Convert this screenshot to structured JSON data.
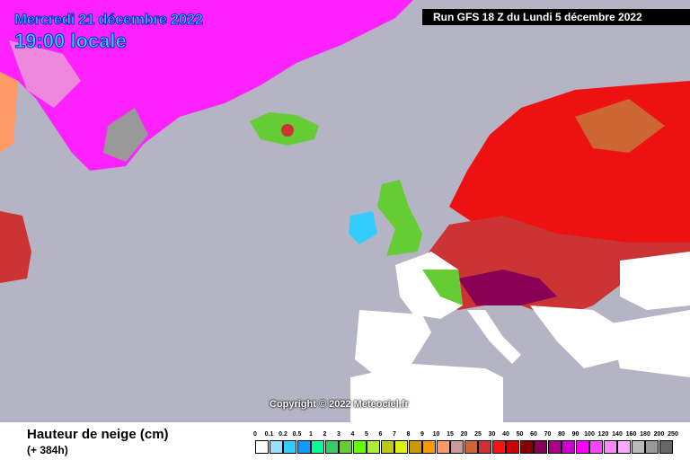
{
  "header": {
    "date": "Mercredi 21 décembre 2022",
    "time": "19:00 locale",
    "run": "Run GFS 18 Z du Lundi 5 décembre 2022"
  },
  "copyright": "Copyright © 2022 Meteociel.fr",
  "footer": {
    "title": "Hauteur de neige (cm)",
    "lead_time": "(+ 384h)"
  },
  "legend": {
    "labels": [
      "0",
      "0.1",
      "0.2",
      "0.5",
      "1",
      "2",
      "3",
      "4",
      "5",
      "6",
      "7",
      "8",
      "9",
      "10",
      "15",
      "20",
      "25",
      "30",
      "40",
      "50",
      "60",
      "70",
      "80",
      "90",
      "100",
      "120",
      "140",
      "160",
      "180",
      "200",
      "250"
    ],
    "colors": [
      "#ffffff",
      "#99ddff",
      "#33ccff",
      "#1199ff",
      "#00ff99",
      "#33cc66",
      "#66cc33",
      "#66ff00",
      "#aaee33",
      "#bbcc11",
      "#ddee11",
      "#cc9900",
      "#ff9900",
      "#ff9966",
      "#cc9999",
      "#cc6633",
      "#cc3333",
      "#ff1111",
      "#cc0000",
      "#880000",
      "#880055",
      "#aa0088",
      "#cc00cc",
      "#ff00ff",
      "#ff44ff",
      "#ff88ff",
      "#ffaaff",
      "#bbbbbb",
      "#999999",
      "#666666",
      "#333333"
    ]
  },
  "map_colors": {
    "sea": "#b4b4c4",
    "no_snow_land": "#ffffff"
  }
}
